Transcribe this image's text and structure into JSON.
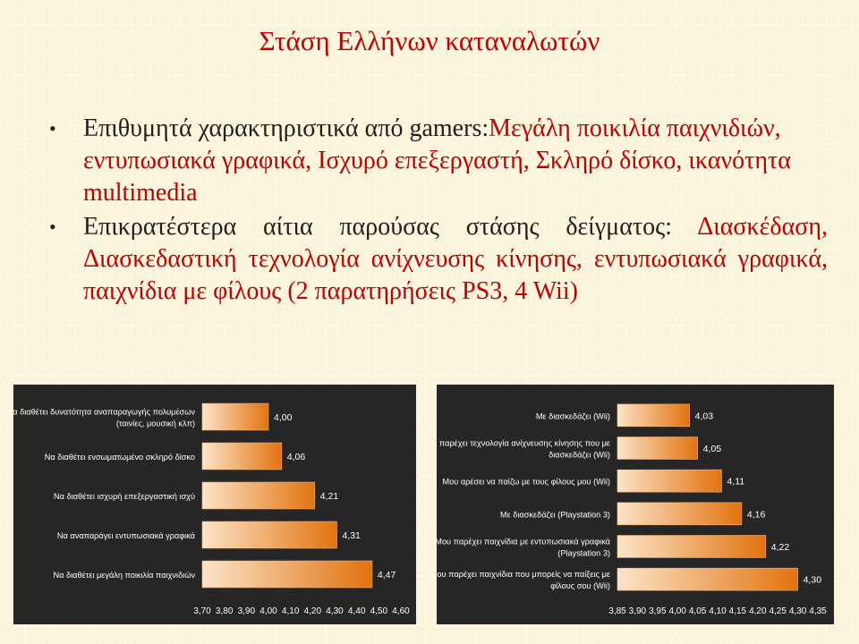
{
  "slide": {
    "title": "Στάση Ελλήνων καταναλωτών",
    "bullets": [
      {
        "lead": "Επιθυμητά χαρακτηριστικά από gamers:",
        "rest": "Μεγάλη ποικιλία παιχνιδιών, εντυπωσιακά γραφικά, Ισχυρό επεξεργαστή, Σκληρό δίσκο, ικανότητα multimedia"
      },
      {
        "lead": "Επικρατέστερα αίτια παρούσας στάσης δείγματος:",
        "rest": "Διασκέδαση, Διασκεδαστική τεχνολογία ανίχνευσης κίνησης, εντυπωσιακά γραφικά, παιχνίδια με φίλους (2 παρατηρήσεις PS3, 4 Wii)"
      }
    ]
  },
  "chart_data": [
    {
      "type": "bar",
      "orientation": "horizontal",
      "categories": [
        [
          "Να διαθέτει δυνατότητα αναπαραγωγής πολυμέσων",
          "(ταινίες, μουσική κλπ)"
        ],
        [
          "Να διαθέτει ενσωματωμένο σκληρό δίσκο"
        ],
        [
          "Να διαθέτει ισχυρή επεξεργαστική ισχύ"
        ],
        [
          "Να αναπαράγει εντυπωσιακά γραφικά"
        ],
        [
          "Να διαθέτει μεγάλη ποικιλία παιχνιδιών"
        ]
      ],
      "values": [
        4.0,
        4.06,
        4.21,
        4.31,
        4.47
      ],
      "value_labels": [
        "4,00",
        "4,06",
        "4,21",
        "4,31",
        "4,47"
      ],
      "xlim": [
        3.7,
        4.6
      ],
      "ticks": [
        3.7,
        3.8,
        3.9,
        4.0,
        4.1,
        4.2,
        4.3,
        4.4,
        4.5,
        4.6
      ],
      "tick_labels": [
        "3,70",
        "3,80",
        "3,90",
        "4,00",
        "4,10",
        "4,20",
        "4,30",
        "4,40",
        "4,50",
        "4,60"
      ],
      "grid": false,
      "legend": "none",
      "colors": {
        "bar_start": "#fce4c8",
        "bar_end": "#e2730f",
        "background": "#262626",
        "text": "#ffffff"
      }
    },
    {
      "type": "bar",
      "orientation": "horizontal",
      "categories": [
        [
          "Με διασκεδάζει (Wii)"
        ],
        [
          "Μου παρέχει τεχνολογία ανίχνευσης κίνησης που με",
          "διασκεδάζει (Wii)"
        ],
        [
          "Μου αρέσει να παίζω με τους φίλους μου (Wii)"
        ],
        [
          "Με διασκεδάζει (Playstation 3)"
        ],
        [
          "Μου παρέχει παιχνίδια με εντυπωσιακά γραφικά",
          "(Playstation 3)"
        ],
        [
          "Μου παρέχει παιχνίδια που μπορείς να παίξεις με",
          "φίλους σου (Wii)"
        ]
      ],
      "values": [
        4.03,
        4.05,
        4.11,
        4.16,
        4.22,
        4.3
      ],
      "value_labels": [
        "4,03",
        "4,05",
        "4,11",
        "4,16",
        "4,22",
        "4,30"
      ],
      "xlim": [
        3.85,
        4.35
      ],
      "ticks": [
        3.85,
        3.9,
        3.95,
        4.0,
        4.05,
        4.1,
        4.15,
        4.2,
        4.25,
        4.3,
        4.35
      ],
      "tick_labels": [
        "3,85",
        "3,90",
        "3,95",
        "4,00",
        "4,05",
        "4,10",
        "4,15",
        "4,20",
        "4,25",
        "4,30",
        "4,35"
      ],
      "grid": false,
      "legend": "none",
      "colors": {
        "bar_start": "#fce4c8",
        "bar_end": "#e2730f",
        "background": "#262626",
        "text": "#ffffff"
      }
    }
  ]
}
